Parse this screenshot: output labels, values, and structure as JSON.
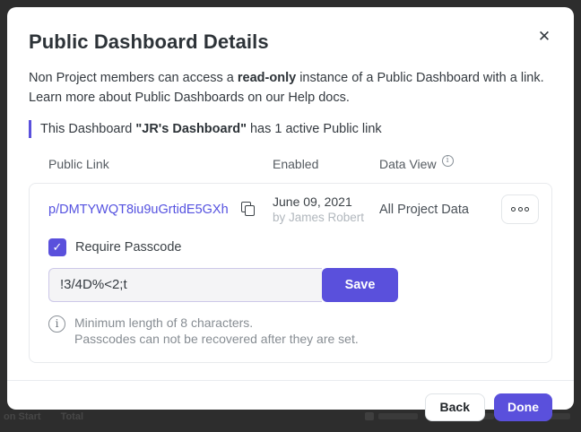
{
  "colors": {
    "accent": "#5a50dc",
    "link": "#5552e0",
    "backdrop": "#2d2d2d"
  },
  "backdrop": {
    "left_text_1": "on Start",
    "left_text_2": "Total"
  },
  "modal": {
    "title": "Public Dashboard Details",
    "close_icon": "✕",
    "description": {
      "before_bold": "Non Project members can access a ",
      "bold": "read-only",
      "after_bold": " instance of a Public Dashboard with a link. Learn more about Public Dashboards on our Help docs."
    },
    "callout": {
      "before_bold": "This Dashboard ",
      "bold": "\"JR's Dashboard\"",
      "after_bold": " has 1 active Public link"
    },
    "table": {
      "columns": [
        "Public Link",
        "Enabled",
        "Data View"
      ],
      "info_icon": "i",
      "row": {
        "link": "p/DMTYWQT8iu9uGrtidE5GXh",
        "enabled_date": "June 09, 2021",
        "enabled_by": "by James Robert",
        "data_view": "All Project Data"
      }
    },
    "passcode": {
      "checkbox_label": "Require Passcode",
      "checkmark": "✓",
      "input_value": "!3/4D%<2;t",
      "save_label": "Save",
      "note_icon": "i",
      "note_line1": "Minimum length of 8 characters.",
      "note_line2": "Passcodes can not be recovered after they are set."
    },
    "footer": {
      "back_label": "Back",
      "done_label": "Done"
    }
  }
}
